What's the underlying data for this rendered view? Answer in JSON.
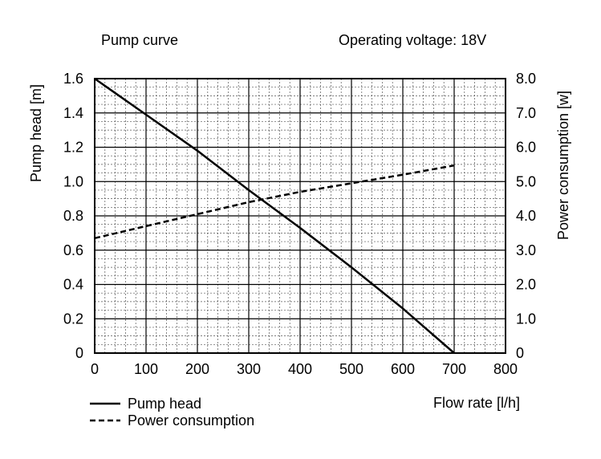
{
  "chart_data": {
    "type": "line",
    "title": "Pump curve",
    "subtitle": "Operating voltage: 18V",
    "xlabel": "Flow rate [l/h]",
    "ylabel_left": "Pump head [m]",
    "ylabel_right": "Power consumption [w]",
    "xlim": [
      0,
      800
    ],
    "ylim_left": [
      0,
      1.6
    ],
    "ylim_right": [
      0,
      8.0
    ],
    "grid": true,
    "legend_position": "bottom-left",
    "x_ticks": [
      "0",
      "100",
      "200",
      "300",
      "400",
      "500",
      "600",
      "700",
      "800"
    ],
    "y_left_ticks": [
      "0",
      "0.2",
      "0.4",
      "0.6",
      "0.8",
      "1.0",
      "1.2",
      "1.4",
      "1.6"
    ],
    "y_right_ticks": [
      "0",
      "1.0",
      "2.0",
      "3.0",
      "4.0",
      "5.0",
      "6.0",
      "7.0",
      "8.0"
    ],
    "series": [
      {
        "name": "Pump head",
        "axis": "left",
        "style": "solid",
        "x": [
          0,
          100,
          200,
          300,
          400,
          500,
          600,
          700
        ],
        "y": [
          1.6,
          1.39,
          1.18,
          0.95,
          0.73,
          0.5,
          0.26,
          0.0
        ]
      },
      {
        "name": "Power consumption",
        "axis": "right",
        "style": "dashed",
        "x": [
          0,
          100,
          200,
          300,
          400,
          500,
          600,
          700
        ],
        "y": [
          3.35,
          3.7,
          4.05,
          4.4,
          4.7,
          4.95,
          5.2,
          5.47
        ]
      }
    ]
  },
  "colors": {
    "background": "#ffffff",
    "line": "#000000",
    "grid_major": "#000000",
    "grid_minor": "#555555"
  }
}
